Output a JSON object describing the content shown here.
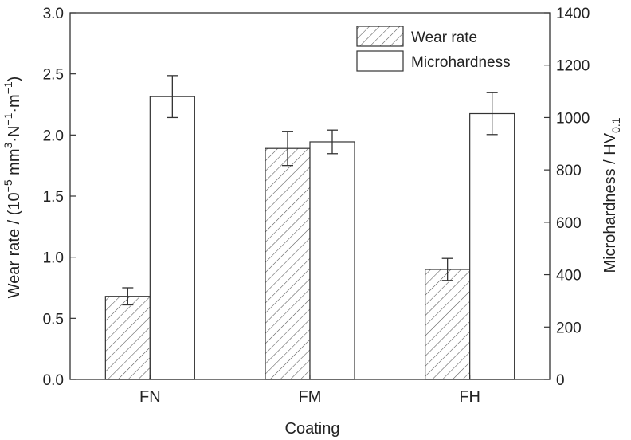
{
  "chart_data": {
    "type": "bar",
    "categories": [
      "FN",
      "FM",
      "FH"
    ],
    "xlabel": "Coating",
    "ylabel": {
      "base": "Wear rate / (10",
      "exp1": "−5",
      "mid": " mm",
      "exp2": "3",
      "mid2": "·N",
      "exp3": "−1",
      "mid3": "·m",
      "exp4": "−1",
      "end": ")"
    },
    "y2label": {
      "base": "Microhardness / HV",
      "sub": "0.1"
    },
    "ylim": [
      0,
      3.0
    ],
    "y2lim": [
      0,
      1400
    ],
    "yticks": [
      "0.0",
      "0.5",
      "1.0",
      "1.5",
      "2.0",
      "2.5",
      "3.0"
    ],
    "y2ticks": [
      "0",
      "200",
      "400",
      "600",
      "800",
      "1000",
      "1200",
      "1400"
    ],
    "legend_position": "top-right",
    "series": [
      {
        "name": "Wear rate",
        "axis": "left",
        "pattern": "hatched",
        "values": [
          0.68,
          1.89,
          0.9
        ],
        "errors": [
          0.07,
          0.14,
          0.09
        ]
      },
      {
        "name": "Microhardness",
        "axis": "right",
        "pattern": "open",
        "values": [
          1080,
          907,
          1015
        ],
        "errors": [
          80,
          45,
          80
        ]
      }
    ],
    "colors": {
      "edge": "#333333",
      "hatch": "#555555",
      "fill": "#ffffff"
    }
  }
}
